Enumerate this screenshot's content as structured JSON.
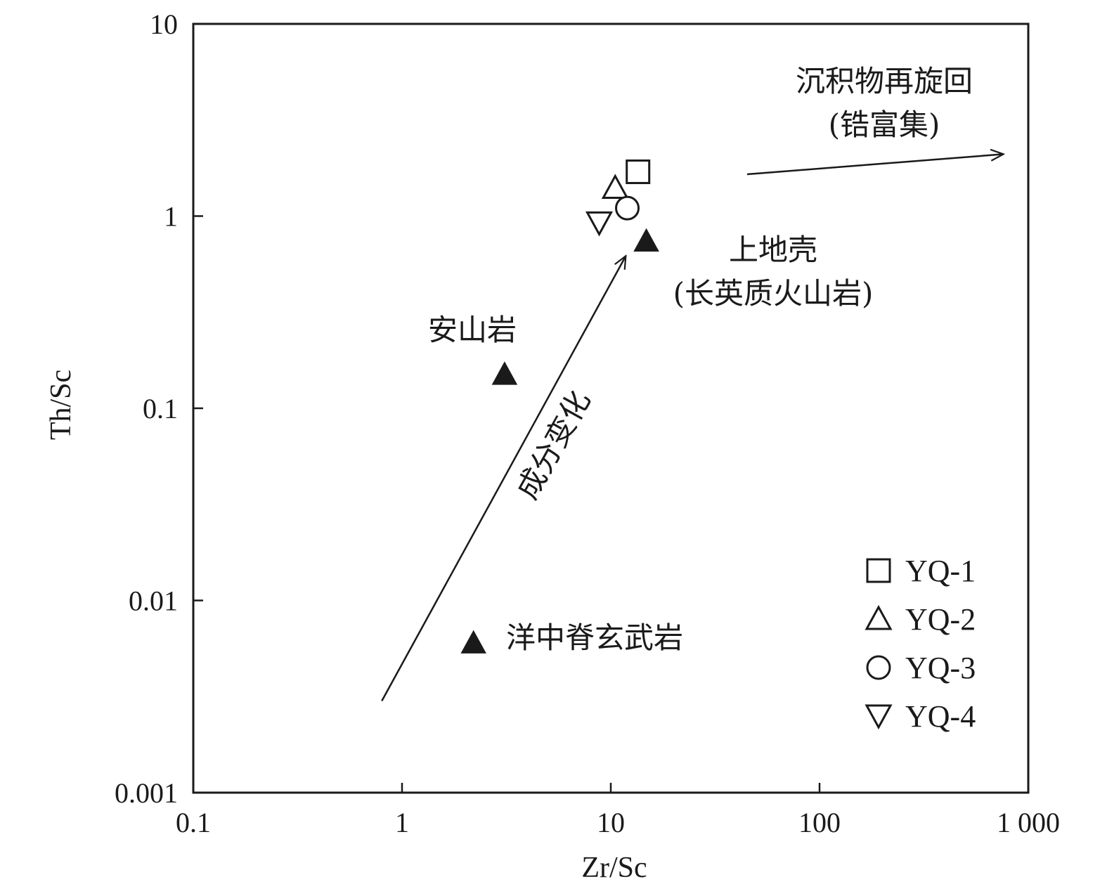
{
  "chart_data": {
    "type": "scatter",
    "x_scale": "log",
    "y_scale": "log",
    "xlabel": "Zr/Sc",
    "ylabel": "Th/Sc",
    "xlim": [
      0.1,
      1000
    ],
    "ylim": [
      0.001,
      10
    ],
    "x_ticks": [
      0.1,
      1,
      10,
      100,
      1000
    ],
    "x_tick_labels": [
      "0.1",
      "1",
      "10",
      "100",
      "1 000"
    ],
    "y_ticks": [
      0.001,
      0.01,
      0.1,
      1,
      10
    ],
    "y_tick_labels": [
      "0.001",
      "0.01",
      "0.1",
      "1",
      "10"
    ],
    "grid": false,
    "legend_position": "bottom-right",
    "series": [
      {
        "name": "YQ-1",
        "marker": "square",
        "points": [
          {
            "x": 13.5,
            "y": 1.7
          }
        ]
      },
      {
        "name": "YQ-2",
        "marker": "triangle-up",
        "points": [
          {
            "x": 10.5,
            "y": 1.4
          }
        ]
      },
      {
        "name": "YQ-3",
        "marker": "circle",
        "points": [
          {
            "x": 12.0,
            "y": 1.1
          }
        ]
      },
      {
        "name": "YQ-4",
        "marker": "triangle-down",
        "points": [
          {
            "x": 8.8,
            "y": 0.92
          }
        ]
      }
    ],
    "reference_points": [
      {
        "label": "洋中脊玄武岩",
        "x": 2.2,
        "y": 0.006
      },
      {
        "label": "安山岩",
        "x": 3.1,
        "y": 0.15
      },
      {
        "label": "上地壳",
        "label_line2": "(长英质火山岩)",
        "x": 14.8,
        "y": 0.74
      }
    ],
    "annotations": [
      {
        "text": "成分变化",
        "from": {
          "x": 0.8,
          "y": 0.003
        },
        "to": {
          "x": 11.8,
          "y": 0.62
        }
      },
      {
        "text": "沉积物再旋回",
        "text_line2": "(锆富集)",
        "from": {
          "x": 45,
          "y": 1.65
        },
        "to": {
          "x": 760,
          "y": 2.1
        }
      }
    ]
  }
}
